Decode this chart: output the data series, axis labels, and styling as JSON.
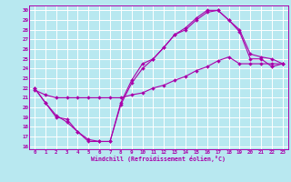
{
  "xlabel": "Windchill (Refroidissement éolien,°C)",
  "bg_color": "#b8e8f0",
  "line_color": "#aa00aa",
  "grid_color": "#ffffff",
  "xlim": [
    0,
    23
  ],
  "ylim": [
    16,
    30
  ],
  "xticks": [
    0,
    1,
    2,
    3,
    4,
    5,
    6,
    7,
    8,
    9,
    10,
    11,
    12,
    13,
    14,
    15,
    16,
    17,
    18,
    19,
    20,
    21,
    22,
    23
  ],
  "yticks": [
    16,
    17,
    18,
    19,
    20,
    21,
    22,
    23,
    24,
    25,
    26,
    27,
    28,
    29,
    30
  ],
  "line1_x": [
    0,
    1,
    2,
    3,
    4,
    5,
    6,
    7,
    8,
    9,
    10,
    11,
    12,
    13,
    14,
    15,
    16,
    17,
    18,
    19,
    20,
    21,
    22,
    23
  ],
  "line1_y": [
    22,
    20.5,
    19.2,
    18.5,
    17.5,
    16.7,
    16.5,
    16.5,
    20.5,
    22.8,
    24.5,
    25.0,
    26.2,
    27.5,
    28.0,
    29.0,
    29.8,
    30.0,
    29.0,
    27.8,
    25.0,
    25.0,
    24.2,
    24.5
  ],
  "line2_x": [
    0,
    1,
    2,
    3,
    4,
    5,
    6,
    7,
    8,
    9,
    10,
    11,
    12,
    13,
    14,
    15,
    16,
    17,
    18,
    19,
    20,
    21,
    22,
    23
  ],
  "line2_y": [
    21.8,
    21.3,
    21.0,
    21.0,
    21.0,
    21.0,
    21.0,
    21.0,
    21.0,
    21.3,
    21.5,
    22.0,
    22.3,
    22.8,
    23.2,
    23.8,
    24.2,
    24.8,
    25.2,
    24.5,
    24.5,
    24.5,
    24.5,
    24.5
  ],
  "line3_x": [
    0,
    1,
    2,
    3,
    4,
    5,
    6,
    7,
    8,
    9,
    10,
    11,
    12,
    13,
    14,
    15,
    16,
    17,
    18,
    19,
    20,
    21,
    22,
    23
  ],
  "line3_y": [
    22.0,
    20.5,
    19.0,
    18.8,
    17.5,
    16.5,
    16.5,
    16.5,
    20.3,
    22.5,
    24.0,
    25.0,
    26.2,
    27.5,
    28.2,
    29.2,
    30.0,
    30.0,
    29.0,
    28.0,
    25.5,
    25.2,
    25.0,
    24.5
  ]
}
